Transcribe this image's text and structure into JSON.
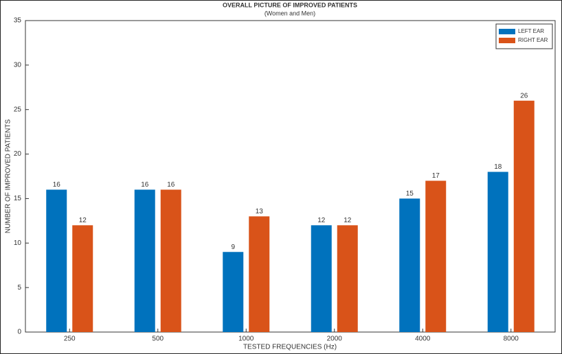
{
  "chart_data": {
    "type": "bar",
    "title": "OVERALL PICTURE OF IMPROVED PATIENTS",
    "subtitle": "(Women and Men)",
    "x_label": "TESTED FREQUENCIES (Hz)",
    "y_label": "NUMBER OF IMPROVED PATIENTS",
    "categories": [
      "250",
      "500",
      "1000",
      "2000",
      "4000",
      "8000"
    ],
    "series": [
      {
        "name": "LEFT EAR",
        "color": "#0072BD",
        "values": [
          16,
          16,
          9,
          12,
          15,
          18
        ]
      },
      {
        "name": "RIGHT EAR",
        "color": "#D95319",
        "values": [
          12,
          16,
          13,
          12,
          17,
          26
        ]
      }
    ],
    "ylim": [
      0,
      35
    ],
    "yticks": [
      0,
      5,
      10,
      15,
      20,
      25,
      30,
      35
    ],
    "grid": false,
    "legend": "top-right"
  }
}
